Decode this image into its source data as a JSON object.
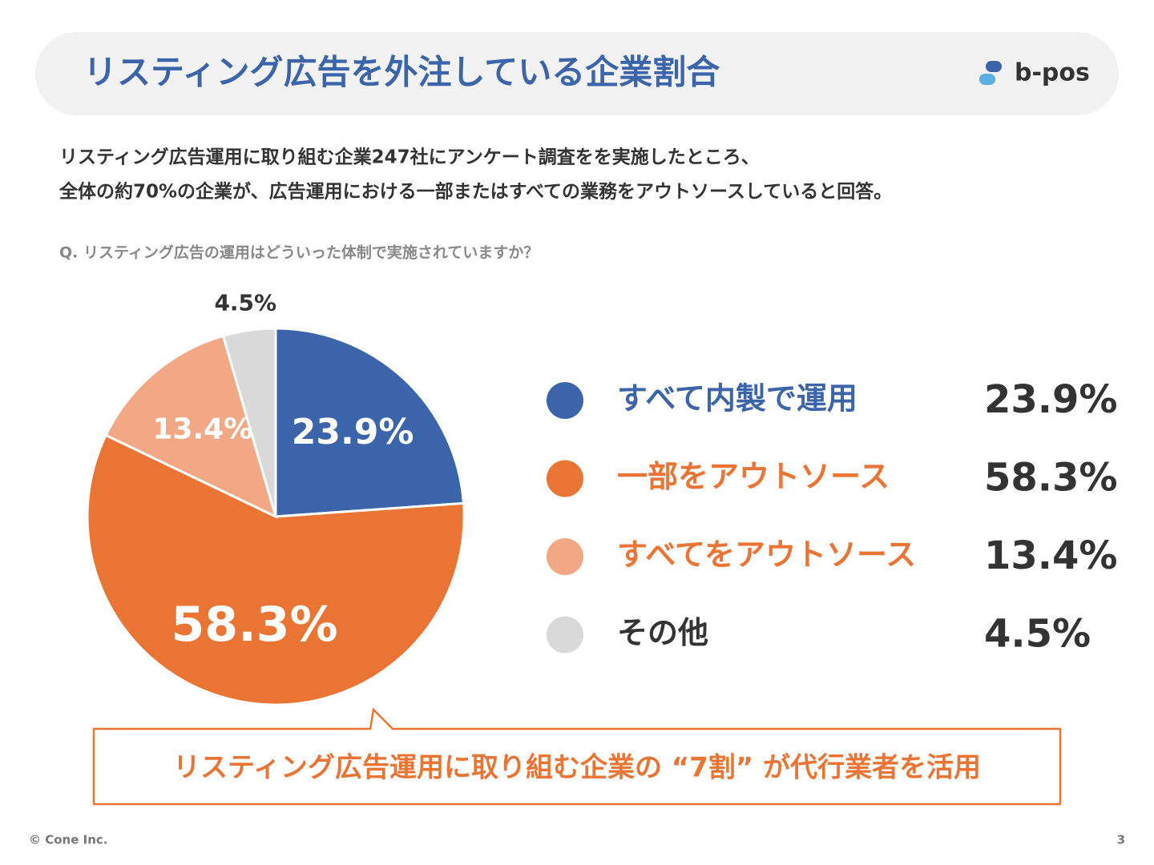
{
  "header": {
    "title": "リスティング広告を外注している企業割合",
    "logo": "b-pos"
  },
  "description": [
    "リスティング広告運用に取り組む企業247社にアンケート調査をを実施したところ、",
    "全体の約70%の企業が、広告運用における一部またはすべての業務をアウトソースしていると回答。"
  ],
  "question": "Q. リスティング広告の運用はどういった体制で実施されていますか？",
  "chart_data": {
    "type": "pie",
    "categories": [
      "すべて内製で運用",
      "一部をアウトソース",
      "すべてをアウトソース",
      "その他"
    ],
    "values": [
      23.9,
      58.3,
      13.4,
      4.5
    ],
    "value_labels": [
      "23.9%",
      "58.3%",
      "13.4%",
      "4.5%"
    ],
    "colors": [
      "#3c64aa",
      "#e97434",
      "#f2a885",
      "#d9d9d9"
    ]
  },
  "callout": "リスティング広告運用に取り組む企業の “7割” が代行業者を活用",
  "footer": {
    "copyright": "© Cone Inc.",
    "page": 3
  }
}
